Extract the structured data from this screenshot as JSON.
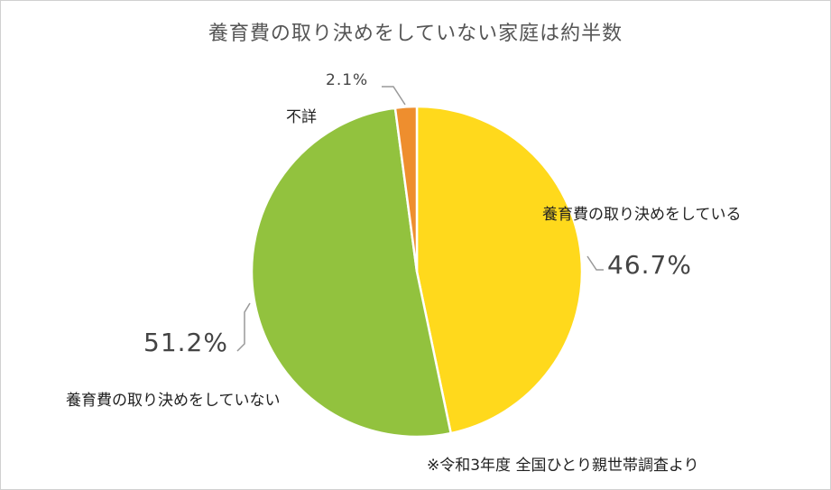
{
  "chart_data": {
    "type": "pie",
    "title": "養育費の取り決めをしていない家庭は約半数",
    "slices": [
      {
        "label": "養育費の取り決めをしている",
        "value": 46.7,
        "data_label": "46.7%",
        "color": "#FFD91C"
      },
      {
        "label": "養育費の取り決めをしていない",
        "value": 51.2,
        "data_label": "51.2%",
        "color": "#92C23E"
      },
      {
        "label": "不詳",
        "value": 2.1,
        "data_label": "2.1%",
        "color": "#EE8E2E"
      }
    ],
    "start": "top",
    "direction": "clockwise",
    "legend": "none"
  },
  "source_note": "※令和3年度 全国ひとり親世帯調査より"
}
